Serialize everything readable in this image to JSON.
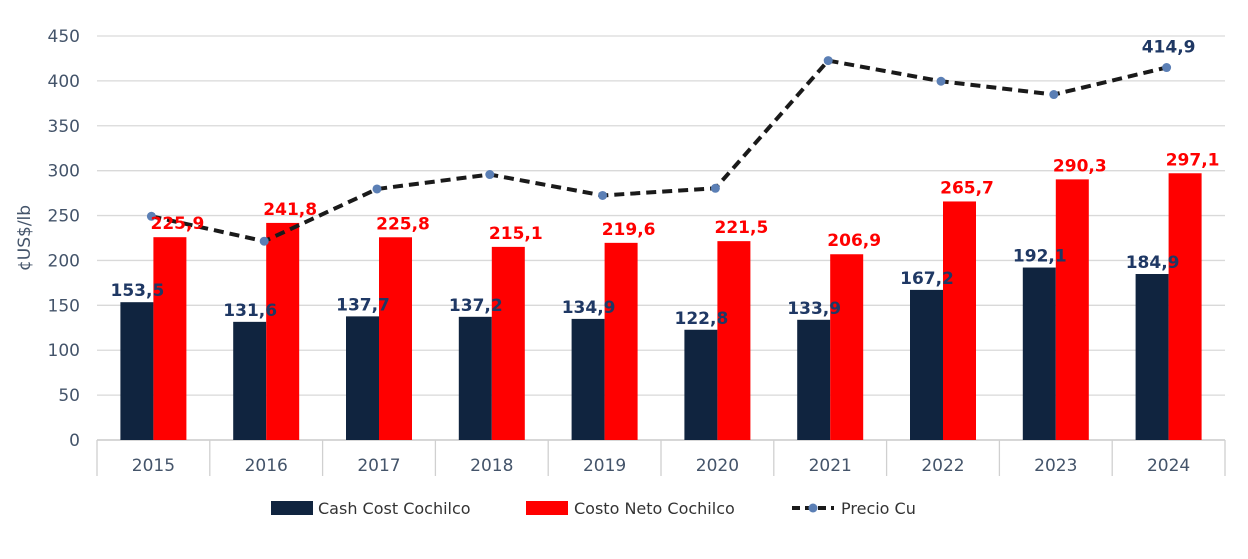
{
  "chart_data": {
    "type": "bar",
    "ylabel": "¢US$/lb",
    "xlabel": "",
    "ylim": [
      0,
      450
    ],
    "yticks": [
      0,
      50,
      100,
      150,
      200,
      250,
      300,
      350,
      400,
      450
    ],
    "grid": true,
    "legend_position": "bottom",
    "categories": [
      "2015",
      "2016",
      "2017",
      "2018",
      "2019",
      "2020",
      "2021",
      "2022",
      "2023",
      "2024"
    ],
    "series": [
      {
        "name": "Cash Cost Cochilco",
        "type": "bar",
        "color": "#10243f",
        "values": [
          153.5,
          131.6,
          137.7,
          137.2,
          134.9,
          122.8,
          133.9,
          167.2,
          192.1,
          184.9
        ],
        "labels": [
          "153,5",
          "131,6",
          "137,7",
          "137,2",
          "134,9",
          "122,8",
          "133,9",
          "167,2",
          "192,1",
          "184,9"
        ]
      },
      {
        "name": "Costo Neto Cochilco",
        "type": "bar",
        "color": "#ff0000",
        "values": [
          225.9,
          241.8,
          225.8,
          215.1,
          219.6,
          221.5,
          206.9,
          265.7,
          290.3,
          297.1
        ],
        "labels": [
          "225,9",
          "241,8",
          "225,8",
          "215,1",
          "219,6",
          "221,5",
          "206,9",
          "265,7",
          "290,3",
          "297,1"
        ]
      },
      {
        "name": "Precio Cu",
        "type": "line",
        "color": "#1a1a1a",
        "marker_color": "#5b7fb5",
        "values": [
          249.2,
          221.4,
          279.6,
          295.7,
          272.4,
          280.4,
          422.6,
          399.6,
          384.8,
          414.9
        ],
        "labels": [
          "",
          "",
          "",
          "",
          "",
          "",
          "",
          "",
          "",
          "414,9"
        ]
      }
    ]
  }
}
